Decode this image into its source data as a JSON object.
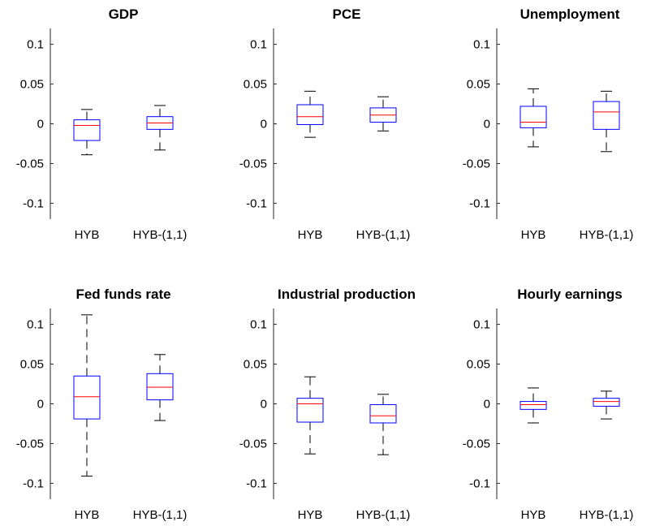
{
  "chart_data": [
    {
      "type": "boxplot",
      "title": "GDP",
      "categories": [
        "HYB",
        "HYB-(1,1)"
      ],
      "ylim": [
        -0.12,
        0.12
      ],
      "yticks": [
        -0.1,
        -0.05,
        0,
        0.05,
        0.1
      ],
      "ytick_labels": [
        "-0.1",
        "-0.05",
        "0",
        "0.05",
        "0.1"
      ],
      "boxes": [
        {
          "whisker_low": -0.039,
          "q1": -0.021,
          "median": -0.002,
          "q3": 0.005,
          "whisker_high": 0.018
        },
        {
          "whisker_low": -0.033,
          "q1": -0.007,
          "median": 0.001,
          "q3": 0.009,
          "whisker_high": 0.023
        }
      ]
    },
    {
      "type": "boxplot",
      "title": "PCE",
      "categories": [
        "HYB",
        "HYB-(1,1)"
      ],
      "ylim": [
        -0.12,
        0.12
      ],
      "yticks": [
        -0.1,
        -0.05,
        0,
        0.05,
        0.1
      ],
      "ytick_labels": [
        "-0.1",
        "-0.05",
        "0",
        "0.05",
        "0.1"
      ],
      "boxes": [
        {
          "whisker_low": -0.017,
          "q1": -0.001,
          "median": 0.009,
          "q3": 0.024,
          "whisker_high": 0.041
        },
        {
          "whisker_low": -0.009,
          "q1": 0.002,
          "median": 0.011,
          "q3": 0.02,
          "whisker_high": 0.034
        }
      ]
    },
    {
      "type": "boxplot",
      "title": "Unemployment",
      "categories": [
        "HYB",
        "HYB-(1,1)"
      ],
      "ylim": [
        -0.12,
        0.12
      ],
      "yticks": [
        -0.1,
        -0.05,
        0,
        0.05,
        0.1
      ],
      "ytick_labels": [
        "-0.1",
        "-0.05",
        "0",
        "0.05",
        "0.1"
      ],
      "boxes": [
        {
          "whisker_low": -0.029,
          "q1": -0.005,
          "median": 0.002,
          "q3": 0.022,
          "whisker_high": 0.044
        },
        {
          "whisker_low": -0.035,
          "q1": -0.007,
          "median": 0.015,
          "q3": 0.028,
          "whisker_high": 0.041
        }
      ]
    },
    {
      "type": "boxplot",
      "title": "Fed funds rate",
      "categories": [
        "HYB",
        "HYB-(1,1)"
      ],
      "ylim": [
        -0.12,
        0.12
      ],
      "yticks": [
        -0.1,
        -0.05,
        0,
        0.05,
        0.1
      ],
      "ytick_labels": [
        "-0.1",
        "-0.05",
        "0",
        "0.05",
        "0.1"
      ],
      "boxes": [
        {
          "whisker_low": -0.091,
          "q1": -0.019,
          "median": 0.009,
          "q3": 0.035,
          "whisker_high": 0.112
        },
        {
          "whisker_low": -0.021,
          "q1": 0.005,
          "median": 0.021,
          "q3": 0.038,
          "whisker_high": 0.062
        }
      ]
    },
    {
      "type": "boxplot",
      "title": "Industrial production",
      "categories": [
        "HYB",
        "HYB-(1,1)"
      ],
      "ylim": [
        -0.12,
        0.12
      ],
      "yticks": [
        -0.1,
        -0.05,
        0,
        0.05,
        0.1
      ],
      "ytick_labels": [
        "-0.1",
        "-0.05",
        "0",
        "0.05",
        "0.1"
      ],
      "boxes": [
        {
          "whisker_low": -0.063,
          "q1": -0.023,
          "median": 0.0,
          "q3": 0.007,
          "whisker_high": 0.034
        },
        {
          "whisker_low": -0.064,
          "q1": -0.024,
          "median": -0.015,
          "q3": -0.001,
          "whisker_high": 0.012
        }
      ]
    },
    {
      "type": "boxplot",
      "title": "Hourly earnings",
      "categories": [
        "HYB",
        "HYB-(1,1)"
      ],
      "ylim": [
        -0.12,
        0.12
      ],
      "yticks": [
        -0.1,
        -0.05,
        0,
        0.05,
        0.1
      ],
      "ytick_labels": [
        "-0.1",
        "-0.05",
        "0",
        "0.05",
        "0.1"
      ],
      "boxes": [
        {
          "whisker_low": -0.024,
          "q1": -0.007,
          "median": -0.001,
          "q3": 0.003,
          "whisker_high": 0.02
        },
        {
          "whisker_low": -0.019,
          "q1": -0.003,
          "median": 0.003,
          "q3": 0.007,
          "whisker_high": 0.016
        }
      ]
    }
  ],
  "colors": {
    "box": "#0000ff",
    "median": "#ff0000",
    "whisker": "#000000",
    "axis": "#262626"
  }
}
